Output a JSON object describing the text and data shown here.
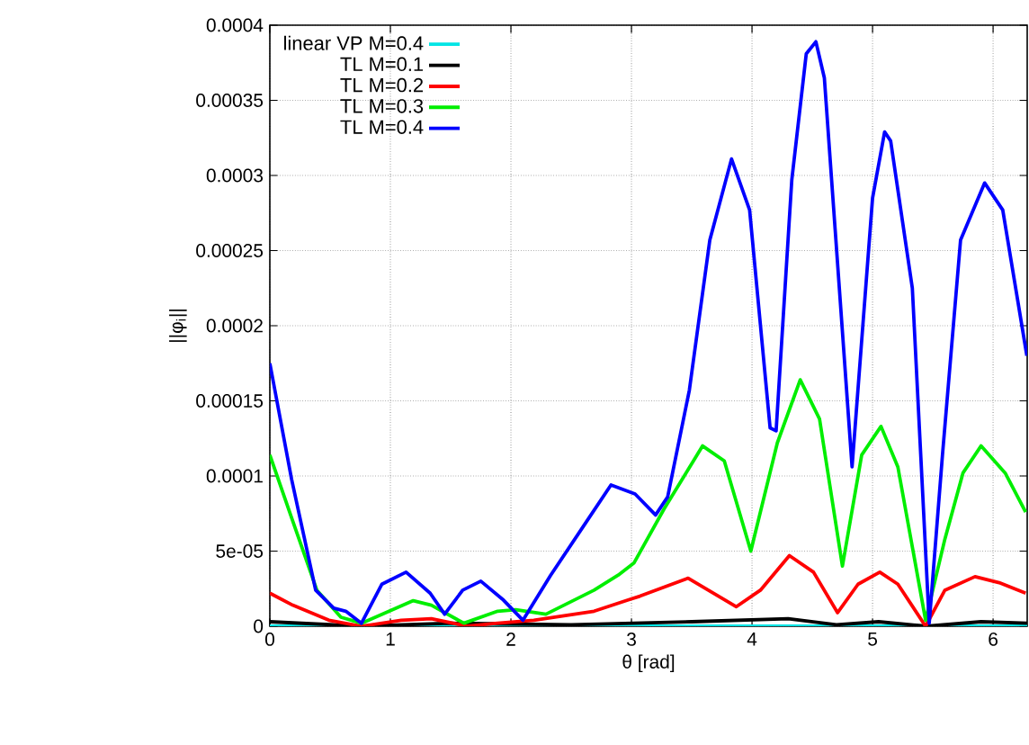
{
  "chart_data": {
    "type": "line",
    "xlabel": "θ [rad]",
    "ylabel": "||φ$_{i}$||",
    "xlim": [
      0,
      6.283
    ],
    "ylim": [
      0,
      0.0004
    ],
    "xticks": [
      0,
      1,
      2,
      3,
      4,
      5,
      6
    ],
    "yticks": [
      0,
      {
        "value": 5e-05,
        "label": "5e-05"
      },
      0.0001,
      0.00015,
      0.0002,
      0.00025,
      0.0003,
      0.00035,
      0.0004
    ],
    "grid": true,
    "legend": "top left",
    "series": [
      {
        "name": "linear VP M=0.4",
        "color": "#00e5e5",
        "x": [
          0,
          1,
          2,
          3,
          4,
          5,
          6,
          6.283
        ],
        "values": [
          0,
          0,
          0,
          0,
          0,
          0,
          0,
          0
        ]
      },
      {
        "name": "TL M=0.1",
        "color": "#000000",
        "x": [
          0,
          0.76,
          1.5,
          2.5,
          3.5,
          4.3,
          4.7,
          5.05,
          5.45,
          5.9,
          6.283
        ],
        "values": [
          3e-06,
          0,
          2e-06,
          1e-06,
          3e-06,
          5e-06,
          1e-06,
          3e-06,
          0,
          3e-06,
          2e-06
        ]
      },
      {
        "name": "TL M=0.2",
        "color": "#ff0000",
        "x": [
          0,
          0.19,
          0.49,
          0.76,
          1.09,
          1.34,
          1.64,
          1.89,
          2.19,
          2.69,
          2.99,
          3.07,
          3.47,
          3.87,
          4.07,
          4.31,
          4.51,
          4.71,
          4.88,
          5.06,
          5.21,
          5.44,
          5.6,
          5.85,
          6.05,
          6.27
        ],
        "values": [
          2.2e-05,
          1.4e-05,
          4e-06,
          0,
          4e-06,
          5e-06,
          0,
          2e-06,
          4e-06,
          1e-05,
          1.8e-05,
          2e-05,
          3.2e-05,
          1.3e-05,
          2.4e-05,
          4.7e-05,
          3.6e-05,
          9e-06,
          2.8e-05,
          3.6e-05,
          2.8e-05,
          0,
          2.4e-05,
          3.3e-05,
          2.9e-05,
          2.2e-05
        ]
      },
      {
        "name": "TL M=0.3",
        "color": "#00ee00",
        "x": [
          0,
          0.19,
          0.39,
          0.59,
          0.76,
          0.99,
          1.19,
          1.34,
          1.61,
          1.89,
          2.04,
          2.29,
          2.69,
          2.89,
          3.02,
          3.27,
          3.59,
          3.77,
          3.99,
          4.21,
          4.4,
          4.56,
          4.75,
          4.91,
          5.07,
          5.21,
          5.44,
          5.6,
          5.75,
          5.9,
          6.1,
          6.27
        ],
        "values": [
          0.000114,
          7e-05,
          2.4e-05,
          6e-06,
          2e-06,
          1e-05,
          1.7e-05,
          1.4e-05,
          2e-06,
          1e-05,
          1.1e-05,
          8e-06,
          2.4e-05,
          3.4e-05,
          4.2e-05,
          7.8e-05,
          0.00012,
          0.00011,
          5e-05,
          0.000122,
          0.000164,
          0.000138,
          4e-05,
          0.000114,
          0.000133,
          0.000106,
          4e-06,
          5.8e-05,
          0.000102,
          0.00012,
          0.000102,
          7.6e-05
        ]
      },
      {
        "name": "TL M=0.4",
        "color": "#0000ff",
        "x": [
          0,
          0.18,
          0.38,
          0.53,
          0.63,
          0.76,
          0.93,
          1.13,
          1.33,
          1.45,
          1.6,
          1.75,
          1.93,
          2.1,
          2.33,
          2.63,
          2.83,
          3.03,
          3.2,
          3.3,
          3.48,
          3.65,
          3.83,
          3.98,
          4.15,
          4.2,
          4.33,
          4.45,
          4.53,
          4.6,
          4.83,
          5.0,
          5.1,
          5.15,
          5.33,
          5.47,
          5.58,
          5.73,
          5.93,
          6.08,
          6.28
        ],
        "values": [
          0.000175,
          9.8e-05,
          2.4e-05,
          1.2e-05,
          1e-05,
          2e-06,
          2.8e-05,
          3.6e-05,
          2.2e-05,
          8e-06,
          2.4e-05,
          3e-05,
          1.8e-05,
          4e-06,
          3.4e-05,
          7e-05,
          9.4e-05,
          8.8e-05,
          7.4e-05,
          8.6e-05,
          0.000157,
          0.000257,
          0.000311,
          0.000277,
          0.000132,
          0.00013,
          0.000297,
          0.000381,
          0.000389,
          0.000365,
          0.000106,
          0.000285,
          0.000329,
          0.000323,
          0.000225,
          2e-06,
          0.000114,
          0.000257,
          0.000295,
          0.000277,
          0.00018
        ]
      }
    ]
  }
}
